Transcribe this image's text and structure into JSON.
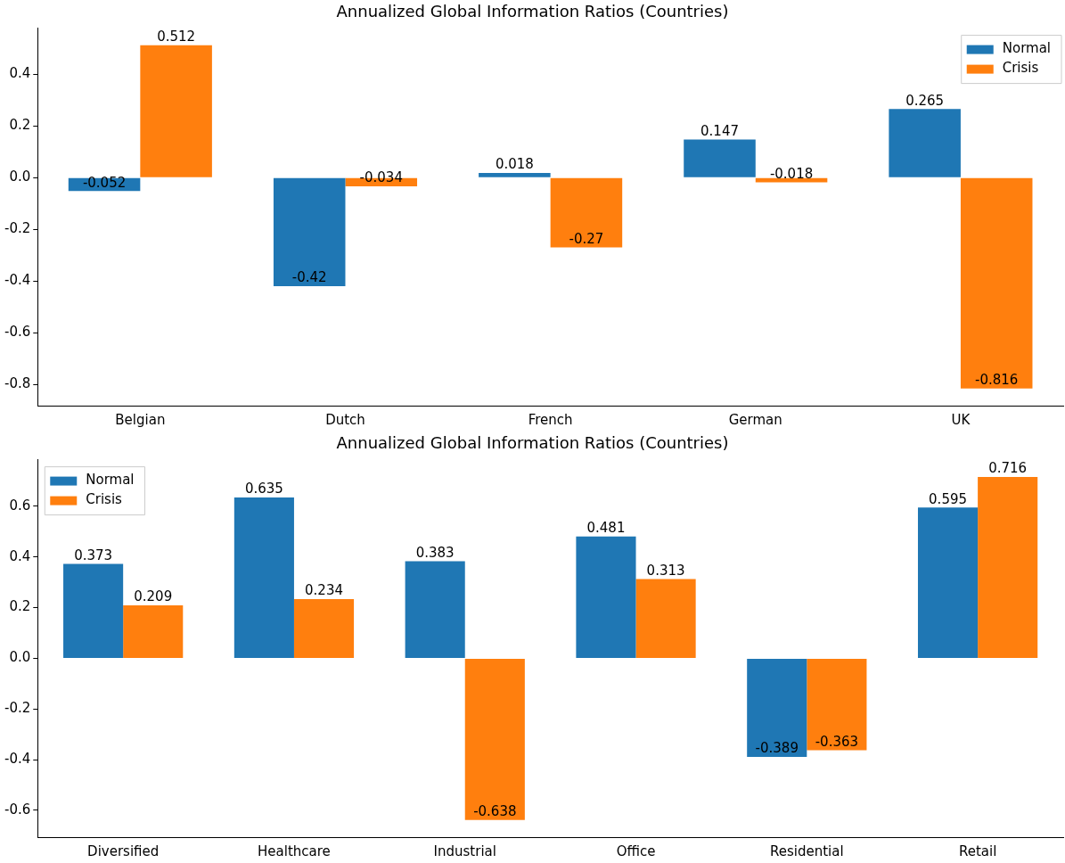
{
  "chart_data": [
    {
      "type": "bar",
      "title": "Annualized Global Information Ratios (Countries)",
      "categories": [
        "Belgian",
        "Dutch",
        "French",
        "German",
        "UK"
      ],
      "series": [
        {
          "name": "Normal",
          "color": "#1f77b4",
          "values": [
            -0.052,
            -0.42,
            0.018,
            0.147,
            0.265
          ]
        },
        {
          "name": "Crisis",
          "color": "#ff7f0e",
          "values": [
            0.512,
            -0.034,
            -0.27,
            -0.018,
            -0.816
          ]
        }
      ],
      "ylim": [
        -0.882,
        0.578
      ],
      "yticks": [
        -0.8,
        -0.6,
        -0.4,
        -0.2,
        {
          "value": 0,
          "label": "0.0"
        },
        0.2,
        0.4
      ],
      "data_labels": true,
      "legend": "top right",
      "grid": false
    },
    {
      "type": "bar",
      "title": "Annualized Global Information Ratios (Countries)",
      "categories": [
        "Diversified",
        "Healthcare",
        "Industrial",
        "Office",
        "Residential",
        "Retail"
      ],
      "series": [
        {
          "name": "Normal",
          "color": "#1f77b4",
          "values": [
            0.373,
            0.635,
            0.383,
            0.481,
            -0.389,
            0.595
          ]
        },
        {
          "name": "Crisis",
          "color": "#ff7f0e",
          "values": [
            0.209,
            0.234,
            -0.638,
            0.313,
            -0.363,
            0.716
          ]
        }
      ],
      "ylim": [
        -0.706,
        0.784
      ],
      "yticks": [
        -0.6,
        -0.4,
        -0.2,
        {
          "value": 0,
          "label": "0.0"
        },
        0.2,
        0.4,
        0.6
      ],
      "data_labels": true,
      "legend": "top left",
      "grid": false
    }
  ]
}
